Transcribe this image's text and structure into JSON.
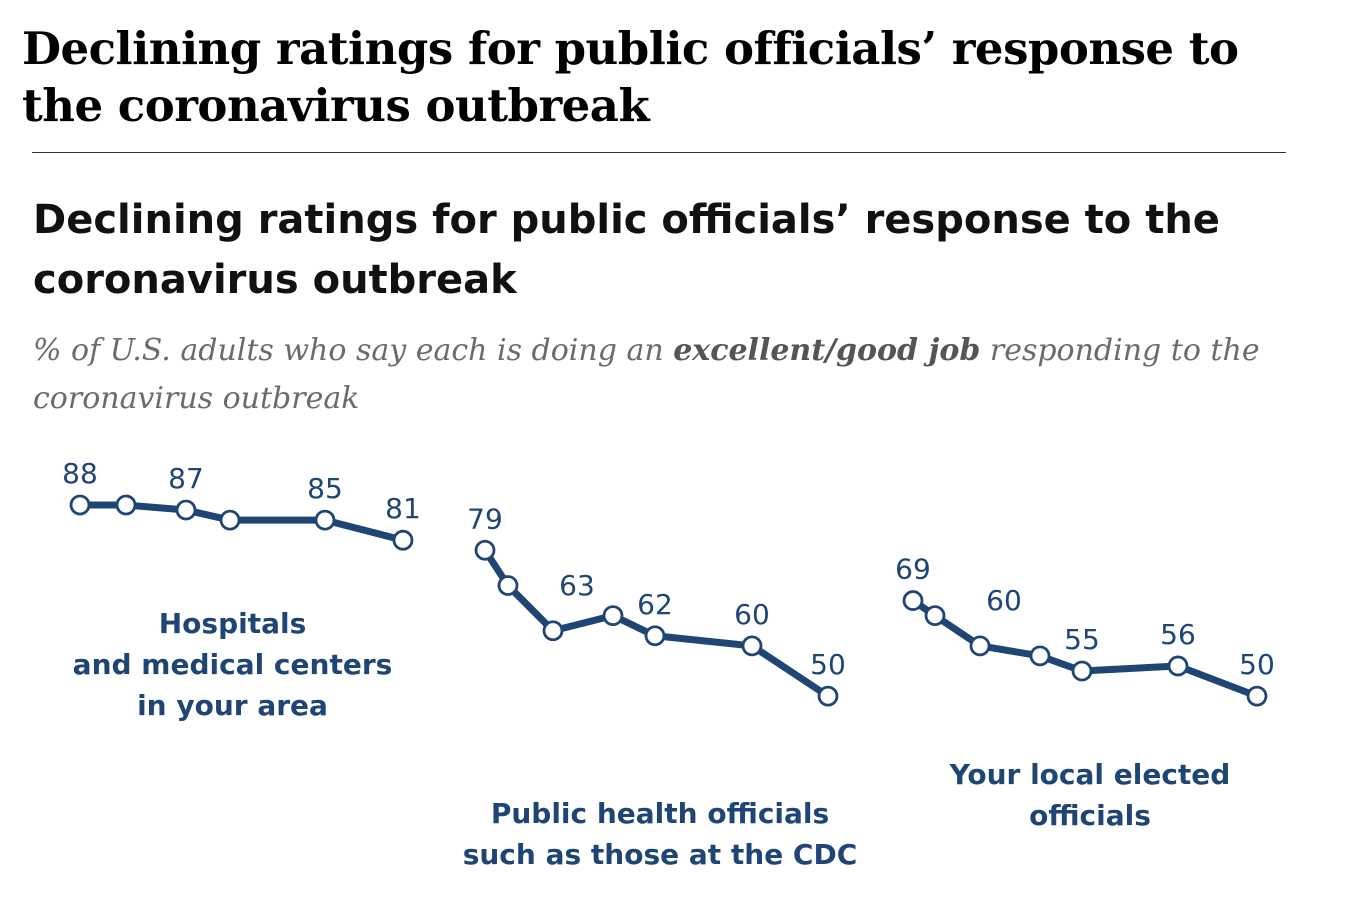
{
  "header": {
    "title": "Declining ratings for public officials’ response to the coronavirus outbreak"
  },
  "colors": {
    "series": "#1f4575",
    "marker_fill": "#ffffff",
    "title": "#111111",
    "subtitle": "#6b6b6b"
  },
  "chart_data": {
    "type": "line",
    "title": "Declining ratings for public officials’ response to the coronavirus outbreak",
    "subtitle": {
      "pre": "% of U.S. adults who say each is doing an ",
      "emphasis": "excellent/good job",
      "post": " responding to the coronavirus outbreak"
    },
    "xlabel": "",
    "ylabel": "",
    "grid": false,
    "legend": "direct labels under each line",
    "series": [
      {
        "name": "Hospitals and medical centers in your area",
        "label_lines": [
          "Hospitals",
          "and medical centers",
          "in your area"
        ],
        "values": [
          88,
          88,
          87,
          85,
          85,
          81
        ],
        "data_labels": [
          "88",
          "",
          "87",
          "",
          "85",
          "81"
        ]
      },
      {
        "name": "Public health officials such as those at the CDC",
        "label_lines": [
          "Public health officials",
          "such as those at the CDC"
        ],
        "values": [
          79,
          72,
          63,
          66,
          62,
          60,
          50
        ],
        "data_labels": [
          "79",
          "",
          "63",
          "",
          "62",
          "60",
          "50"
        ]
      },
      {
        "name": "Your local elected officials",
        "label_lines": [
          "Your local elected",
          "officials"
        ],
        "values": [
          69,
          66,
          60,
          58,
          55,
          56,
          50
        ],
        "data_labels": [
          "69",
          "",
          "60",
          "",
          "55",
          "56",
          "50"
        ]
      }
    ]
  }
}
